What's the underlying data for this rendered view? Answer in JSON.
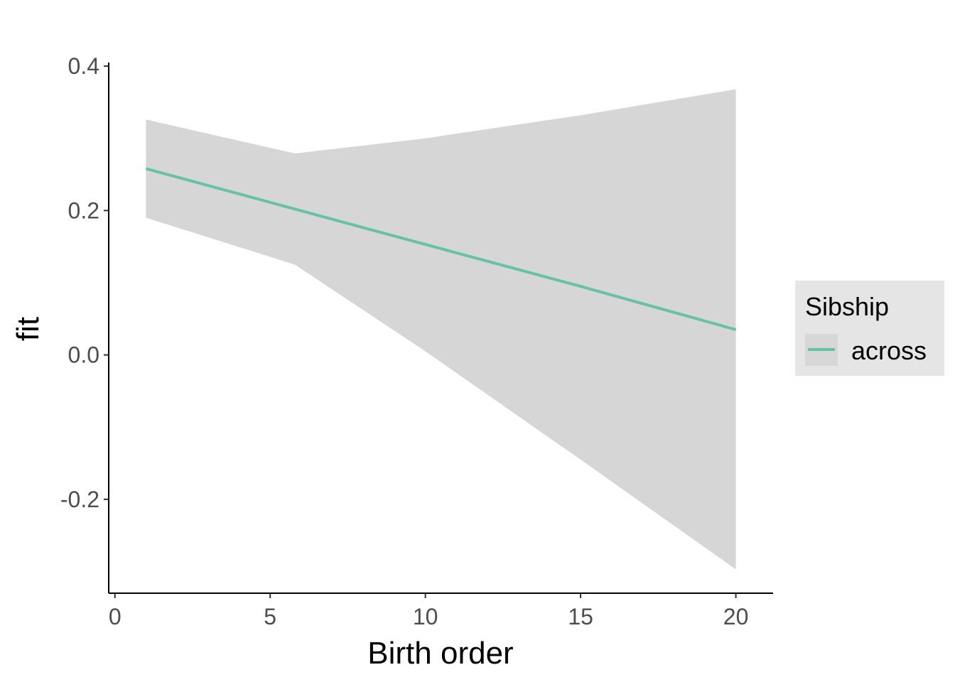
{
  "chart_data": {
    "type": "line",
    "title": "",
    "xlabel": "Birth order",
    "ylabel": "fit",
    "xlim": [
      -0.2,
      21.2
    ],
    "ylim": [
      -0.33,
      0.405
    ],
    "x_ticks": [
      0,
      5,
      10,
      15,
      20
    ],
    "x_tick_labels": [
      "0",
      "5",
      "10",
      "15",
      "20"
    ],
    "y_ticks": [
      -0.2,
      0.0,
      0.2,
      0.4
    ],
    "y_tick_labels": [
      "-0.2",
      "0.0",
      "0.2",
      "0.4"
    ],
    "grid": false,
    "legend": {
      "title": "Sibship",
      "position": "right",
      "background": "#e5e5e5",
      "key_background": "#d7d7d7"
    },
    "series": [
      {
        "name": "across",
        "color": "#66c2a5",
        "x": [
          1,
          5.8,
          10,
          15,
          20
        ],
        "fit": [
          0.258,
          0.202,
          0.153,
          0.095,
          0.035
        ],
        "lower": [
          0.19,
          0.125,
          0.005,
          -0.145,
          -0.297
        ],
        "upper": [
          0.326,
          0.279,
          0.3,
          0.332,
          0.368
        ],
        "band_color": "#d6d6d6"
      }
    ]
  }
}
